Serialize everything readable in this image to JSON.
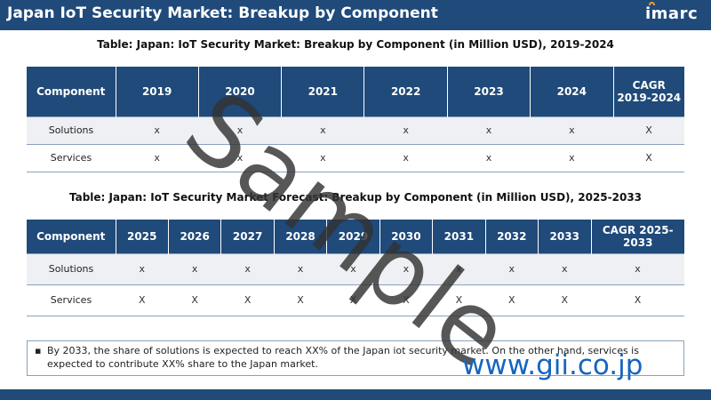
{
  "header": {
    "title": "Japan IoT Security Market: Breakup by Component",
    "logo_text": "imarc"
  },
  "table1": {
    "title": "Table: Japan: IoT Security Market: Breakup by Component (in Million USD), 2019-2024",
    "columns": [
      "Component",
      "2019",
      "2020",
      "2021",
      "2022",
      "2023",
      "2024",
      "CAGR 2019-2024"
    ],
    "rows": [
      [
        "Solutions",
        "x",
        "x",
        "x",
        "x",
        "x",
        "x",
        "X"
      ],
      [
        "Services",
        "x",
        "x",
        "x",
        "x",
        "x",
        "x",
        "X"
      ]
    ]
  },
  "table2": {
    "title": "Table: Japan: IoT Security Market Forecast: Breakup by Component (in Million USD), 2025-2033",
    "columns": [
      "Component",
      "2025",
      "2026",
      "2027",
      "2028",
      "2029",
      "2030",
      "2031",
      "2032",
      "2033",
      "CAGR 2025-2033"
    ],
    "rows": [
      [
        "Solutions",
        "x",
        "x",
        "x",
        "x",
        "x",
        "x",
        "x",
        "x",
        "x",
        "x"
      ],
      [
        "Services",
        "X",
        "X",
        "X",
        "X",
        "X",
        "X",
        "X",
        "X",
        "X",
        "X"
      ]
    ]
  },
  "note": {
    "bullet": "▪",
    "text": "By 2033, the share of solutions is expected to reach XX% of the Japan iot security market. On the other hand, services is expected to contribute XX% share to the Japan market."
  },
  "watermarks": {
    "sample": "Sample",
    "site": "www.gii.co.jp"
  }
}
